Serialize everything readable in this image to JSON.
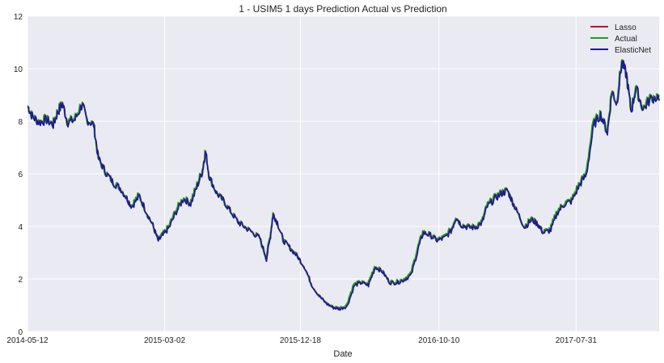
{
  "chart_data": {
    "type": "line",
    "title": "1 - USIM5 1 days Prediction Actual vs Prediction",
    "xlabel": "Date",
    "ylabel": "",
    "xlim": [
      "2014-05-12",
      "2018-01-25"
    ],
    "ylim": [
      0,
      12
    ],
    "yticks": [
      0,
      2,
      4,
      6,
      8,
      10,
      12
    ],
    "xticks": [
      "2014-05-12",
      "2015-03-02",
      "2015-12-18",
      "2016-10-10",
      "2017-07-31"
    ],
    "grid": true,
    "legend_position": "top-right",
    "series": [
      {
        "name": "Lasso",
        "color": "#b2182b"
      },
      {
        "name": "Actual",
        "color": "#1aa51a"
      },
      {
        "name": "ElasticNet",
        "color": "#1a1a9c"
      }
    ],
    "actual": [
      [
        "2014-05-12",
        8.6
      ],
      [
        "2014-05-22",
        8.2
      ],
      [
        "2014-06-05",
        8.0
      ],
      [
        "2014-06-20",
        8.1
      ],
      [
        "2014-07-05",
        7.9
      ],
      [
        "2014-07-15",
        8.4
      ],
      [
        "2014-07-25",
        8.7
      ],
      [
        "2014-08-05",
        8.0
      ],
      [
        "2014-08-20",
        8.1
      ],
      [
        "2014-09-05",
        8.7
      ],
      [
        "2014-09-15",
        8.1
      ],
      [
        "2014-09-30",
        7.9
      ],
      [
        "2014-10-10",
        6.6
      ],
      [
        "2014-10-25",
        6.1
      ],
      [
        "2014-11-10",
        5.7
      ],
      [
        "2014-11-25",
        5.5
      ],
      [
        "2014-12-10",
        5.1
      ],
      [
        "2014-12-20",
        4.8
      ],
      [
        "2015-01-05",
        5.2
      ],
      [
        "2015-01-20",
        4.6
      ],
      [
        "2015-02-05",
        4.0
      ],
      [
        "2015-02-15",
        3.5
      ],
      [
        "2015-02-25",
        3.7
      ],
      [
        "2015-03-10",
        4.0
      ],
      [
        "2015-03-25",
        4.6
      ],
      [
        "2015-04-10",
        5.1
      ],
      [
        "2015-04-25",
        4.9
      ],
      [
        "2015-05-10",
        5.6
      ],
      [
        "2015-05-22",
        6.2
      ],
      [
        "2015-05-28",
        6.9
      ],
      [
        "2015-06-05",
        5.9
      ],
      [
        "2015-06-20",
        5.3
      ],
      [
        "2015-07-05",
        5.0
      ],
      [
        "2015-07-20",
        4.6
      ],
      [
        "2015-08-05",
        4.2
      ],
      [
        "2015-08-20",
        4.0
      ],
      [
        "2015-09-05",
        3.8
      ],
      [
        "2015-09-20",
        3.6
      ],
      [
        "2015-10-05",
        2.8
      ],
      [
        "2015-10-15",
        3.8
      ],
      [
        "2015-10-20",
        4.5
      ],
      [
        "2015-10-28",
        4.2
      ],
      [
        "2015-11-10",
        3.5
      ],
      [
        "2015-11-25",
        3.2
      ],
      [
        "2015-12-10",
        2.9
      ],
      [
        "2015-12-25",
        2.5
      ],
      [
        "2016-01-10",
        1.8
      ],
      [
        "2016-01-25",
        1.4
      ],
      [
        "2016-02-10",
        1.1
      ],
      [
        "2016-02-25",
        0.95
      ],
      [
        "2016-03-10",
        0.9
      ],
      [
        "2016-03-25",
        1.0
      ],
      [
        "2016-04-10",
        1.8
      ],
      [
        "2016-04-25",
        1.9
      ],
      [
        "2016-05-10",
        1.8
      ],
      [
        "2016-05-25",
        2.5
      ],
      [
        "2016-06-10",
        2.3
      ],
      [
        "2016-06-25",
        1.9
      ],
      [
        "2016-07-10",
        1.9
      ],
      [
        "2016-07-25",
        2.0
      ],
      [
        "2016-08-10",
        2.2
      ],
      [
        "2016-08-25",
        3.2
      ],
      [
        "2016-09-05",
        3.8
      ],
      [
        "2016-09-20",
        3.7
      ],
      [
        "2016-10-05",
        3.5
      ],
      [
        "2016-10-20",
        3.6
      ],
      [
        "2016-11-05",
        3.9
      ],
      [
        "2016-11-15",
        4.4
      ],
      [
        "2016-11-25",
        4.1
      ],
      [
        "2016-12-10",
        4.0
      ],
      [
        "2016-12-25",
        4.0
      ],
      [
        "2017-01-10",
        4.2
      ],
      [
        "2017-01-20",
        4.8
      ],
      [
        "2017-02-05",
        5.1
      ],
      [
        "2017-02-20",
        5.3
      ],
      [
        "2017-03-05",
        5.4
      ],
      [
        "2017-03-15",
        5.0
      ],
      [
        "2017-03-25",
        4.6
      ],
      [
        "2017-04-10",
        4.0
      ],
      [
        "2017-04-25",
        4.3
      ],
      [
        "2017-05-10",
        4.1
      ],
      [
        "2017-05-20",
        3.8
      ],
      [
        "2017-06-05",
        3.9
      ],
      [
        "2017-06-20",
        4.6
      ],
      [
        "2017-07-05",
        4.9
      ],
      [
        "2017-07-20",
        5.0
      ],
      [
        "2017-08-05",
        5.6
      ],
      [
        "2017-08-20",
        6.0
      ],
      [
        "2017-09-05",
        7.9
      ],
      [
        "2017-09-20",
        8.3
      ],
      [
        "2017-10-05",
        7.6
      ],
      [
        "2017-10-15",
        9.2
      ],
      [
        "2017-10-25",
        8.7
      ],
      [
        "2017-11-05",
        10.3
      ],
      [
        "2017-11-15",
        9.8
      ],
      [
        "2017-11-25",
        8.4
      ],
      [
        "2017-12-05",
        9.3
      ],
      [
        "2017-12-20",
        8.5
      ],
      [
        "2018-01-05",
        8.9
      ],
      [
        "2018-01-25",
        9.0
      ]
    ]
  }
}
